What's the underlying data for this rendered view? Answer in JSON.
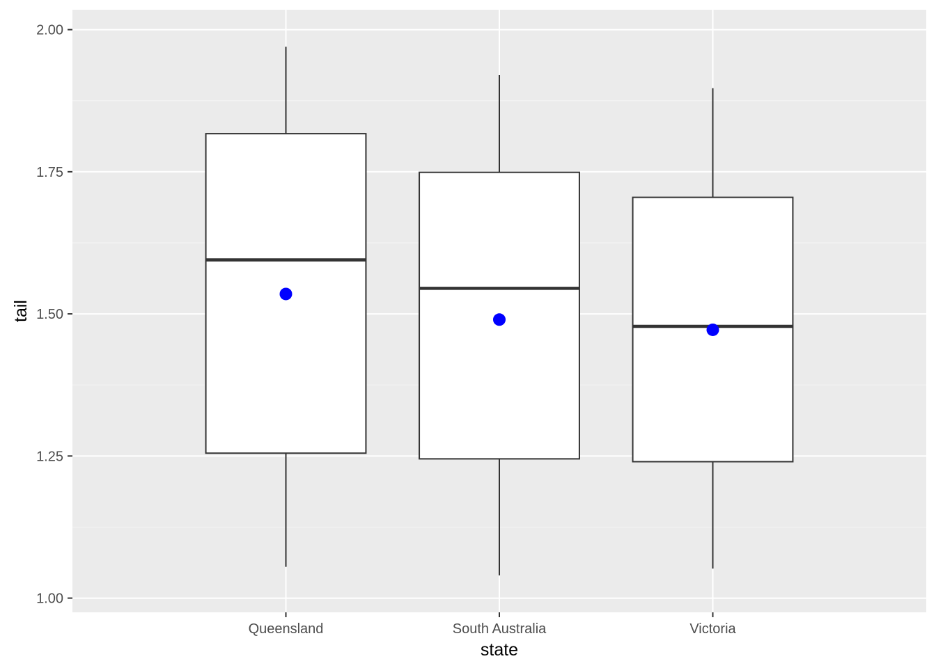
{
  "chart_data": {
    "type": "boxplot",
    "xlabel": "state",
    "ylabel": "tail",
    "ylim": [
      0.975,
      2.035
    ],
    "y_ticks": [
      1.0,
      1.25,
      1.5,
      1.75,
      2.0
    ],
    "y_tick_labels": [
      "1.00",
      "1.25",
      "1.50",
      "1.75",
      "2.00"
    ],
    "grid": true,
    "categories": [
      "Queensland",
      "South Australia",
      "Victoria"
    ],
    "boxes": [
      {
        "category": "Queensland",
        "whisker_low": 1.055,
        "q1": 1.255,
        "median": 1.595,
        "q3": 1.817,
        "whisker_high": 1.97,
        "mean": 1.535
      },
      {
        "category": "South Australia",
        "whisker_low": 1.04,
        "q1": 1.245,
        "median": 1.545,
        "q3": 1.749,
        "whisker_high": 1.92,
        "mean": 1.49
      },
      {
        "category": "Victoria",
        "whisker_low": 1.052,
        "q1": 1.24,
        "median": 1.478,
        "q3": 1.705,
        "whisker_high": 1.897,
        "mean": 1.472
      }
    ],
    "colors": {
      "panel_background": "#ebebeb",
      "grid_major": "#ffffff",
      "grid_minor": "#f5f5f5",
      "box_fill": "#ffffff",
      "box_line": "#333333",
      "mean_point": "#0000ff"
    }
  }
}
